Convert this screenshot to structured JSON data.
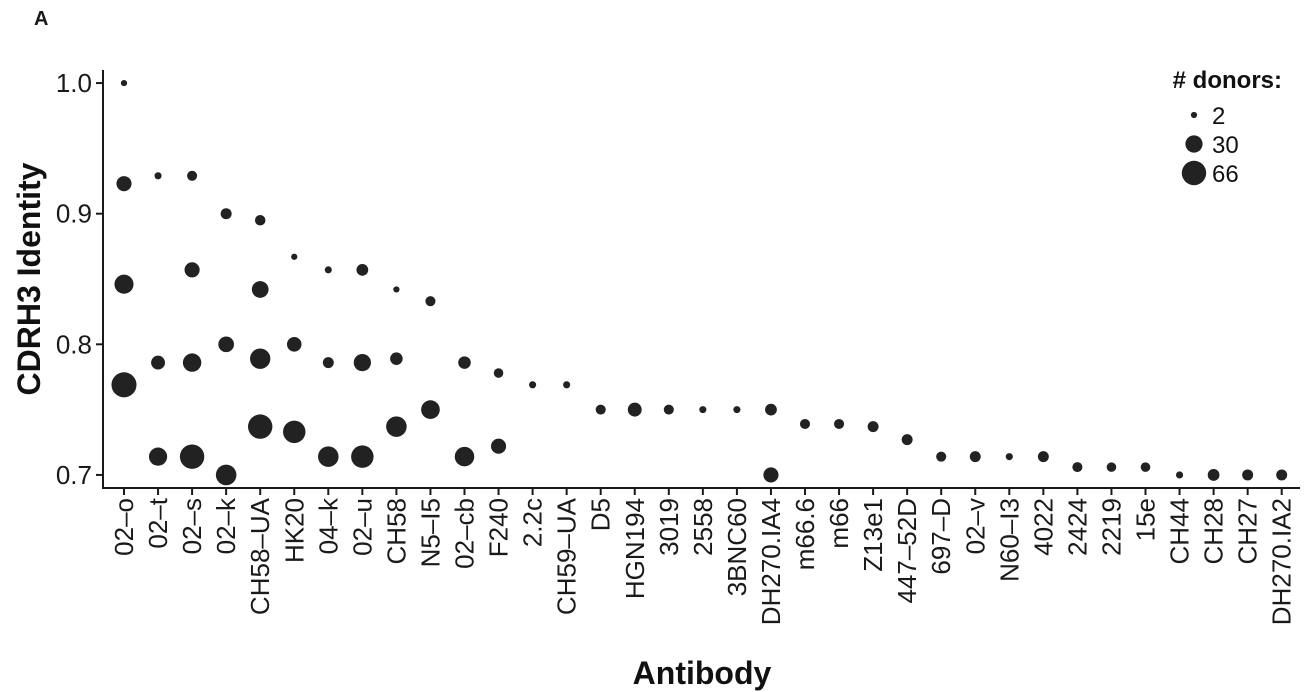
{
  "panel_label": "A",
  "chart_data": {
    "type": "scatter",
    "xlabel": "Antibody",
    "ylabel": "CDRH3 Identity",
    "ylim": [
      0.69,
      1.01
    ],
    "yticks": [
      "0.7",
      "0.8",
      "0.9",
      "1.0"
    ],
    "point_color": "#222222",
    "categories": [
      "02–o",
      "02–t",
      "02–s",
      "02–k",
      "CH58–UA",
      "HK20",
      "04–k",
      "02–u",
      "CH58",
      "N5–I5",
      "02–cb",
      "F240",
      "2.2c",
      "CH59–UA",
      "D5",
      "HGN194",
      "3019",
      "2558",
      "3BNC60",
      "DH270.IA4",
      "m66.6",
      "m66",
      "Z13e1",
      "447–52D",
      "697–D",
      "02–v",
      "N60–I3",
      "4022",
      "2424",
      "2219",
      "15e",
      "CH44",
      "CH28",
      "CH27",
      "DH270.IA2"
    ],
    "legend": {
      "title": "# donors:",
      "entries": [
        {
          "label": "2",
          "value": 2
        },
        {
          "label": "30",
          "value": 30
        },
        {
          "label": "66",
          "value": 66
        }
      ]
    },
    "points": [
      {
        "x": "02–o",
        "y": 1.0,
        "donors": 2
      },
      {
        "x": "02–o",
        "y": 0.923,
        "donors": 22
      },
      {
        "x": "02–o",
        "y": 0.846,
        "donors": 38
      },
      {
        "x": "02–o",
        "y": 0.769,
        "donors": 70
      },
      {
        "x": "02–t",
        "y": 0.929,
        "donors": 3
      },
      {
        "x": "02–t",
        "y": 0.786,
        "donors": 18
      },
      {
        "x": "02–t",
        "y": 0.714,
        "donors": 34
      },
      {
        "x": "02–s",
        "y": 0.929,
        "donors": 8
      },
      {
        "x": "02–s",
        "y": 0.857,
        "donors": 22
      },
      {
        "x": "02–s",
        "y": 0.786,
        "donors": 35
      },
      {
        "x": "02–s",
        "y": 0.714,
        "donors": 66
      },
      {
        "x": "02–k",
        "y": 0.9,
        "donors": 10
      },
      {
        "x": "02–k",
        "y": 0.8,
        "donors": 24
      },
      {
        "x": "02–k",
        "y": 0.7,
        "donors": 45
      },
      {
        "x": "CH58–UA",
        "y": 0.895,
        "donors": 9
      },
      {
        "x": "CH58–UA",
        "y": 0.842,
        "donors": 28
      },
      {
        "x": "CH58–UA",
        "y": 0.789,
        "donors": 44
      },
      {
        "x": "CH58–UA",
        "y": 0.737,
        "donors": 66
      },
      {
        "x": "HK20",
        "y": 0.867,
        "donors": 2
      },
      {
        "x": "HK20",
        "y": 0.8,
        "donors": 20
      },
      {
        "x": "HK20",
        "y": 0.733,
        "donors": 55
      },
      {
        "x": "04–k",
        "y": 0.857,
        "donors": 3
      },
      {
        "x": "04–k",
        "y": 0.786,
        "donors": 10
      },
      {
        "x": "04–k",
        "y": 0.714,
        "donors": 45
      },
      {
        "x": "02–u",
        "y": 0.857,
        "donors": 12
      },
      {
        "x": "02–u",
        "y": 0.786,
        "donors": 30
      },
      {
        "x": "02–u",
        "y": 0.714,
        "donors": 55
      },
      {
        "x": "CH58",
        "y": 0.842,
        "donors": 2
      },
      {
        "x": "CH58",
        "y": 0.789,
        "donors": 14
      },
      {
        "x": "CH58",
        "y": 0.737,
        "donors": 45
      },
      {
        "x": "N5–I5",
        "y": 0.833,
        "donors": 8
      },
      {
        "x": "N5–I5",
        "y": 0.75,
        "donors": 36
      },
      {
        "x": "02–cb",
        "y": 0.786,
        "donors": 14
      },
      {
        "x": "02–cb",
        "y": 0.714,
        "donors": 40
      },
      {
        "x": "F240",
        "y": 0.778,
        "donors": 7
      },
      {
        "x": "F240",
        "y": 0.722,
        "donors": 22
      },
      {
        "x": "2.2c",
        "y": 0.769,
        "donors": 3
      },
      {
        "x": "CH59–UA",
        "y": 0.769,
        "donors": 3
      },
      {
        "x": "D5",
        "y": 0.75,
        "donors": 8
      },
      {
        "x": "HGN194",
        "y": 0.75,
        "donors": 18
      },
      {
        "x": "3019",
        "y": 0.75,
        "donors": 8
      },
      {
        "x": "2558",
        "y": 0.75,
        "donors": 3
      },
      {
        "x": "3BNC60",
        "y": 0.75,
        "donors": 3
      },
      {
        "x": "DH270.IA4",
        "y": 0.75,
        "donors": 12
      },
      {
        "x": "DH270.IA4",
        "y": 0.7,
        "donors": 22
      },
      {
        "x": "m66.6",
        "y": 0.739,
        "donors": 8
      },
      {
        "x": "m66",
        "y": 0.739,
        "donors": 8
      },
      {
        "x": "Z13e1",
        "y": 0.737,
        "donors": 10
      },
      {
        "x": "447–52D",
        "y": 0.727,
        "donors": 10
      },
      {
        "x": "697–D",
        "y": 0.714,
        "donors": 8
      },
      {
        "x": "02–v",
        "y": 0.714,
        "donors": 10
      },
      {
        "x": "N60–I3",
        "y": 0.714,
        "donors": 3
      },
      {
        "x": "4022",
        "y": 0.714,
        "donors": 10
      },
      {
        "x": "2424",
        "y": 0.706,
        "donors": 8
      },
      {
        "x": "2219",
        "y": 0.706,
        "donors": 7
      },
      {
        "x": "15e",
        "y": 0.706,
        "donors": 7
      },
      {
        "x": "CH44",
        "y": 0.7,
        "donors": 3
      },
      {
        "x": "CH28",
        "y": 0.7,
        "donors": 12
      },
      {
        "x": "CH27",
        "y": 0.7,
        "donors": 10
      },
      {
        "x": "DH270.IA2",
        "y": 0.7,
        "donors": 10
      }
    ]
  }
}
